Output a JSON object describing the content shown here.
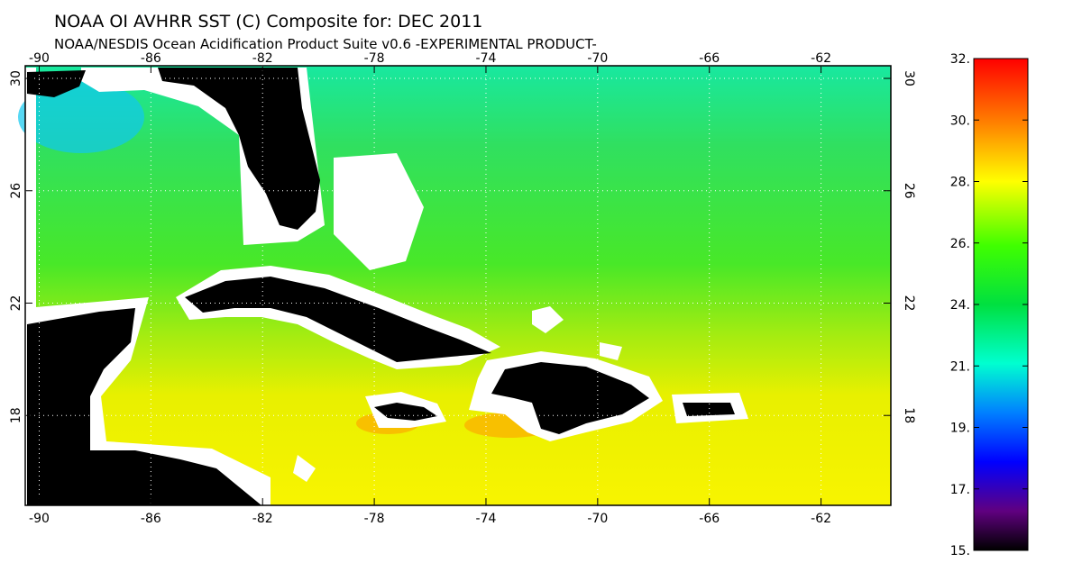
{
  "title": "NOAA OI AVHRR SST (C) Composite for: DEC 2011",
  "subtitle": "NOAA/NESDIS Ocean Acidification Product Suite  v0.6 -EXPERIMENTAL PRODUCT-",
  "map": {
    "xlim": [
      -90.5,
      -59.5
    ],
    "ylim": [
      14.8,
      30.45
    ],
    "xticks": [
      -90,
      -86,
      -82,
      -78,
      -74,
      -70,
      -66,
      -62
    ],
    "yticks": [
      18,
      22,
      26,
      30
    ]
  },
  "colorbar": {
    "lim": [
      15,
      32
    ],
    "ticks": [
      {
        "value": 32,
        "label": "32."
      },
      {
        "value": 29.875,
        "label": "30."
      },
      {
        "value": 27.75,
        "label": "28."
      },
      {
        "value": 25.625,
        "label": "26."
      },
      {
        "value": 23.5,
        "label": "24."
      },
      {
        "value": 21.375,
        "label": "21."
      },
      {
        "value": 19.25,
        "label": "19."
      },
      {
        "value": 17.125,
        "label": "17."
      },
      {
        "value": 15,
        "label": "15."
      }
    ]
  }
}
